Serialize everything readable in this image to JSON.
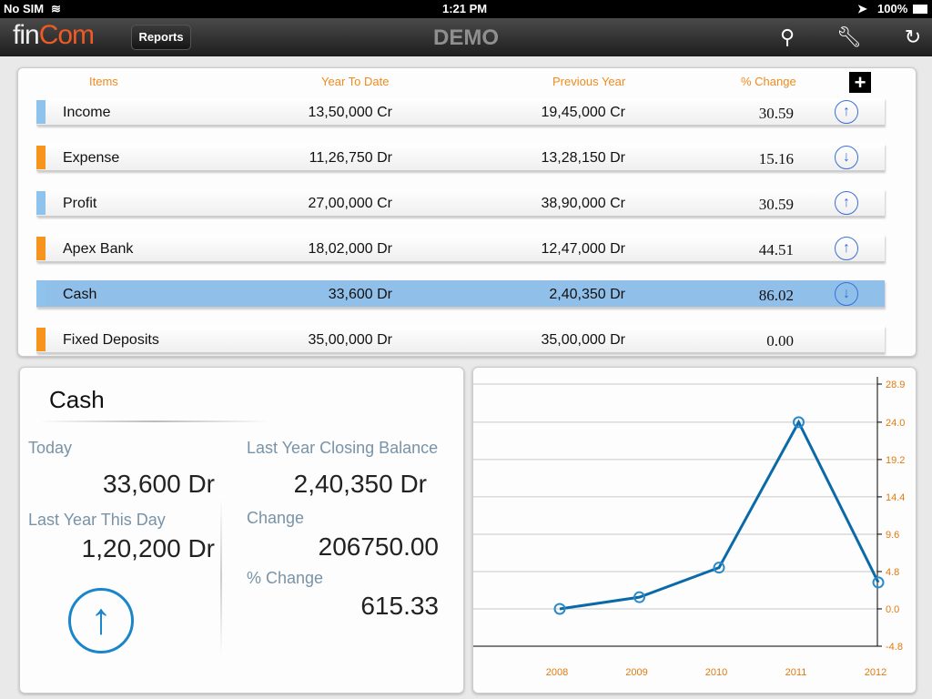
{
  "status": {
    "carrier": "No SIM",
    "time": "1:21 PM",
    "battery": "100%"
  },
  "nav": {
    "logo_fin": "fin",
    "logo_com": "Com",
    "reports": "Reports",
    "title": "DEMO"
  },
  "table": {
    "headers": [
      "Items",
      "Year To Date",
      "Previous Year",
      "% Change"
    ],
    "add": "+",
    "rows": [
      {
        "item": "Income",
        "ytd": "13,50,000 Cr",
        "prev": "19,45,000 Cr",
        "change": "30.59",
        "dir": "up",
        "color": "#8ec3ee"
      },
      {
        "item": "Expense",
        "ytd": "11,26,750 Dr",
        "prev": "13,28,150 Dr",
        "change": "15.16",
        "dir": "down",
        "color": "#f7941d"
      },
      {
        "item": "Profit",
        "ytd": "27,00,000 Cr",
        "prev": "38,90,000 Cr",
        "change": "30.59",
        "dir": "up",
        "color": "#8ec3ee"
      },
      {
        "item": "Apex Bank",
        "ytd": "18,02,000 Dr",
        "prev": "12,47,000 Dr",
        "change": "44.51",
        "dir": "up",
        "color": "#f7941d"
      },
      {
        "item": "Cash",
        "ytd": "33,600 Dr",
        "prev": "2,40,350 Dr",
        "change": "86.02",
        "dir": "down",
        "color": "#8ec3ee",
        "selected": true
      },
      {
        "item": "Fixed Deposits",
        "ytd": "35,00,000 Dr",
        "prev": "35,00,000 Dr",
        "change": "0.00",
        "dir": "",
        "color": "#f7941d"
      }
    ]
  },
  "detail": {
    "title": "Cash",
    "today_label": "Today",
    "today": "33,600 Dr",
    "lytd_label": "Last Year This Day",
    "lytd": "1,20,200 Dr",
    "lycb_label": "Last Year Closing Balance",
    "lycb": "2,40,350 Dr",
    "change_label": "Change",
    "change": "206750.00",
    "pct_label": "% Change",
    "pct": "615.33"
  },
  "chart_data": {
    "type": "line",
    "categories": [
      "2008",
      "2009",
      "2010",
      "2011",
      "2012"
    ],
    "values": [
      0.0,
      1.5,
      5.3,
      24.0,
      3.4
    ],
    "ylim": [
      -4.8,
      28.9
    ],
    "yticks": [
      "-4.8",
      "0.0",
      "4.8",
      "9.6",
      "14.4",
      "19.2",
      "24.0",
      "28.9"
    ],
    "grid": true,
    "y_axis_side": "right",
    "color": "#0a6aa8",
    "label_color": "#e07a10"
  }
}
